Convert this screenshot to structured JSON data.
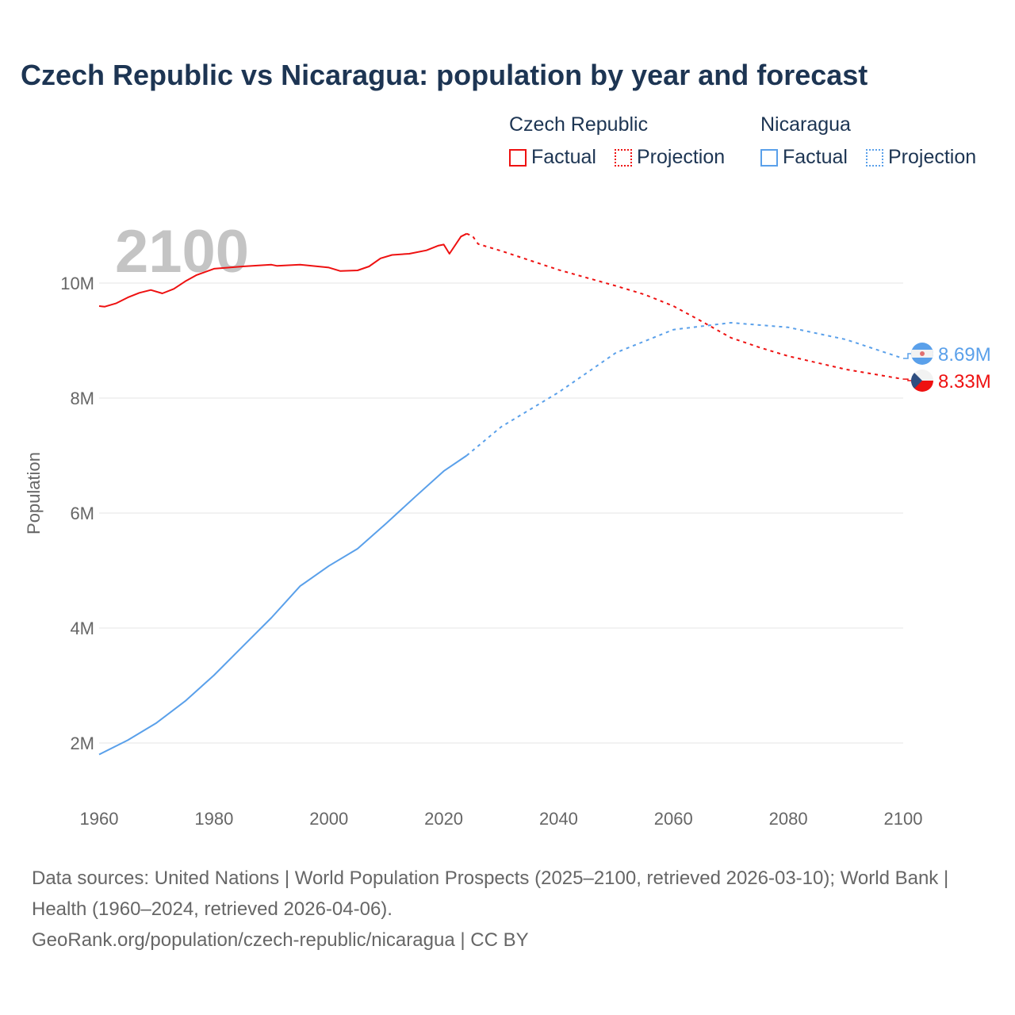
{
  "title": "Czech Republic vs Nicaragua: population by year and forecast",
  "legend": {
    "groups": [
      {
        "name": "Czech Republic",
        "color": "#ee1111",
        "factual": "Factual",
        "projection": "Projection"
      },
      {
        "name": "Nicaragua",
        "color": "#5aa0ea",
        "factual": "Factual",
        "projection": "Projection"
      }
    ]
  },
  "year_watermark": "2100",
  "footer": {
    "sources": "Data sources: United Nations | World Population Prospects (2025–2100, retrieved 2026-03-10); World Bank | Health (1960–2024, retrieved 2026-04-06).",
    "link": "GeoRank.org/population/czech-republic/nicaragua | CC BY"
  },
  "chart_data": {
    "type": "line",
    "title": "Czech Republic vs Nicaragua: population by year and forecast",
    "xlabel": "",
    "ylabel": "Population",
    "xlim": [
      1960,
      2100
    ],
    "ylim": [
      0.6,
      11.5
    ],
    "x_ticks": [
      "1960",
      "1980",
      "2000",
      "2020",
      "2040",
      "2060",
      "2080",
      "2100"
    ],
    "x_tick_values": [
      1960,
      1980,
      2000,
      2020,
      2040,
      2060,
      2080,
      2100
    ],
    "y_ticks": [
      "2M",
      "4M",
      "6M",
      "8M",
      "10M"
    ],
    "y_tick_values": [
      2,
      4,
      6,
      8,
      10
    ],
    "units": "millions",
    "grid": true,
    "legend_position": "top-right",
    "series": [
      {
        "name": "Czech Republic",
        "kind": "Factual",
        "color": "#ee1111",
        "x": [
          1960,
          1961,
          1963,
          1965,
          1967,
          1969,
          1971,
          1973,
          1975,
          1977,
          1980,
          1985,
          1990,
          1991,
          1995,
          2000,
          2002,
          2005,
          2007,
          2009,
          2011,
          2014,
          2017,
          2019,
          2020,
          2021,
          2023,
          2024
        ],
        "y": [
          9.6,
          9.59,
          9.65,
          9.75,
          9.83,
          9.88,
          9.82,
          9.9,
          10.03,
          10.14,
          10.25,
          10.29,
          10.32,
          10.3,
          10.32,
          10.27,
          10.21,
          10.22,
          10.29,
          10.43,
          10.49,
          10.51,
          10.57,
          10.65,
          10.67,
          10.51,
          10.81,
          10.86
        ]
      },
      {
        "name": "Czech Republic",
        "kind": "Projection",
        "color": "#ee1111",
        "x": [
          2024,
          2025,
          2026,
          2030,
          2040,
          2050,
          2055,
          2060,
          2065,
          2070,
          2075,
          2080,
          2090,
          2100
        ],
        "y": [
          10.86,
          10.82,
          10.68,
          10.56,
          10.23,
          9.95,
          9.8,
          9.6,
          9.33,
          9.05,
          8.88,
          8.73,
          8.5,
          8.33
        ]
      },
      {
        "name": "Nicaragua",
        "kind": "Factual",
        "color": "#5aa0ea",
        "x": [
          1960,
          1965,
          1970,
          1975,
          1980,
          1985,
          1990,
          1995,
          2000,
          2005,
          2010,
          2015,
          2020,
          2024
        ],
        "y": [
          1.8,
          2.05,
          2.35,
          2.73,
          3.18,
          3.68,
          4.18,
          4.73,
          5.08,
          5.38,
          5.82,
          6.28,
          6.73,
          7.0
        ]
      },
      {
        "name": "Nicaragua",
        "kind": "Projection",
        "color": "#5aa0ea",
        "x": [
          2024,
          2030,
          2040,
          2050,
          2060,
          2070,
          2080,
          2090,
          2100
        ],
        "y": [
          7.0,
          7.5,
          8.1,
          8.79,
          9.19,
          9.31,
          9.23,
          9.02,
          8.69
        ]
      }
    ],
    "end_labels": [
      {
        "name": "Nicaragua",
        "label": "8.69M",
        "value": 8.69,
        "color": "#5aa0ea"
      },
      {
        "name": "Czech Republic",
        "label": "8.33M",
        "value": 8.33,
        "color": "#ee1111"
      }
    ]
  }
}
